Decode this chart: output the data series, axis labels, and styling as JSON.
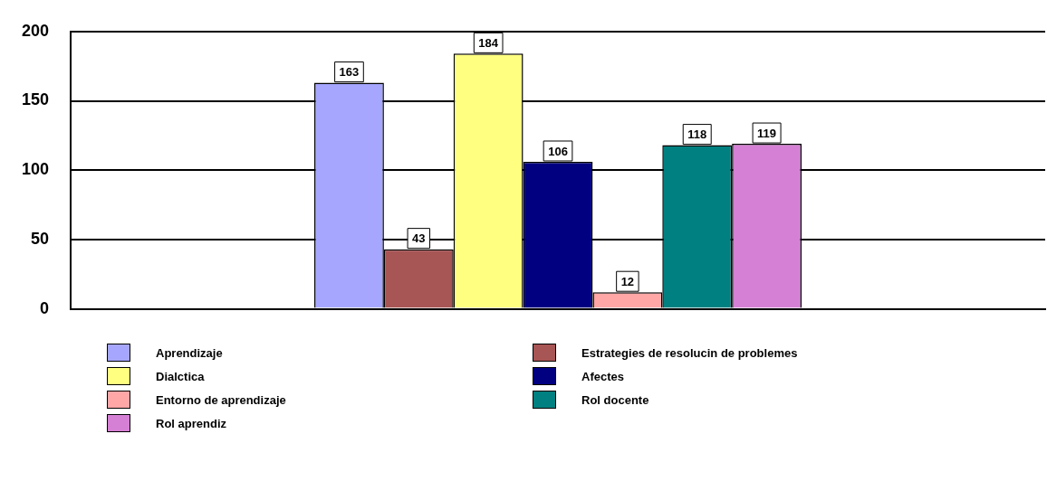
{
  "chart_data": {
    "type": "bar",
    "categories": [
      null
    ],
    "series": [
      {
        "name": "Aprendizaje",
        "color": "#a6a6ff",
        "values": [
          163
        ]
      },
      {
        "name": "Estrategies de resolucin de problemes",
        "color": "#a85555",
        "values": [
          43
        ]
      },
      {
        "name": "Dialctica",
        "color": "#ffff80",
        "values": [
          184
        ]
      },
      {
        "name": "Afectes",
        "color": "#000080",
        "values": [
          106
        ]
      },
      {
        "name": "Entorno de aprendizaje",
        "color": "#ffa6a6",
        "values": [
          12
        ]
      },
      {
        "name": "Rol docente",
        "color": "#008080",
        "values": [
          118
        ]
      },
      {
        "name": "Rol aprendiz",
        "color": "#d580d5",
        "values": [
          119
        ]
      }
    ],
    "ylim": [
      0,
      200
    ],
    "yticks": [
      0,
      50,
      100,
      150,
      200
    ],
    "grid": "y",
    "legend": "bottom",
    "data_labels": true
  }
}
